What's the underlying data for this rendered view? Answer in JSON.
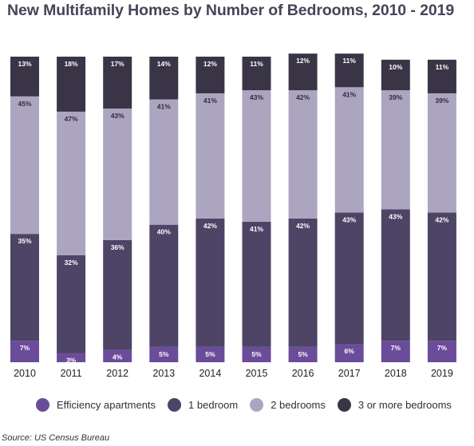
{
  "title": "New Multifamily Homes by Number of Bedrooms, 2010 - 2019",
  "source": "Source: US Census Bureau",
  "colors": {
    "efficiency": "#6b4c9a",
    "one_bedroom": "#4d4466",
    "two_bedrooms": "#aca5c0",
    "three_plus": "#3a3546"
  },
  "chart_data": {
    "type": "bar",
    "stacked": true,
    "title": "New Multifamily Homes by Number of Bedrooms, 2010 - 2019",
    "xlabel": "",
    "ylabel": "",
    "ylim": [
      0,
      100
    ],
    "grid": false,
    "legend_position": "bottom",
    "categories": [
      "2010",
      "2011",
      "2012",
      "2013",
      "2014",
      "2015",
      "2016",
      "2017",
      "2018",
      "2019"
    ],
    "series": [
      {
        "name": "Efficiency apartments",
        "values": [
          7,
          3,
          4,
          5,
          5,
          5,
          5,
          6,
          7,
          7
        ],
        "labels": [
          "7%",
          "3%",
          "4%",
          "5%",
          "5%",
          "5%",
          "5%",
          "6%",
          "7%",
          "7%"
        ]
      },
      {
        "name": "1 bedroom",
        "values": [
          35,
          32,
          36,
          40,
          42,
          41,
          42,
          43,
          43,
          42
        ],
        "labels": [
          "35%",
          "32%",
          "36%",
          "40%",
          "42%",
          "41%",
          "42%",
          "43%",
          "43%",
          "42%"
        ]
      },
      {
        "name": "2 bedrooms",
        "values": [
          45,
          47,
          43,
          41,
          41,
          43,
          42,
          41,
          39,
          39
        ],
        "labels": [
          "45%",
          "47%",
          "43%",
          "41%",
          "41%",
          "43%",
          "42%",
          "41%",
          "39%",
          "39%"
        ]
      },
      {
        "name": "3 or more bedrooms",
        "values": [
          13,
          18,
          17,
          14,
          12,
          11,
          12,
          11,
          10,
          11
        ],
        "labels": [
          "13%",
          "18%",
          "17%",
          "14%",
          "12%",
          "11%",
          "12%",
          "11%",
          "10%",
          "11%"
        ]
      }
    ]
  }
}
